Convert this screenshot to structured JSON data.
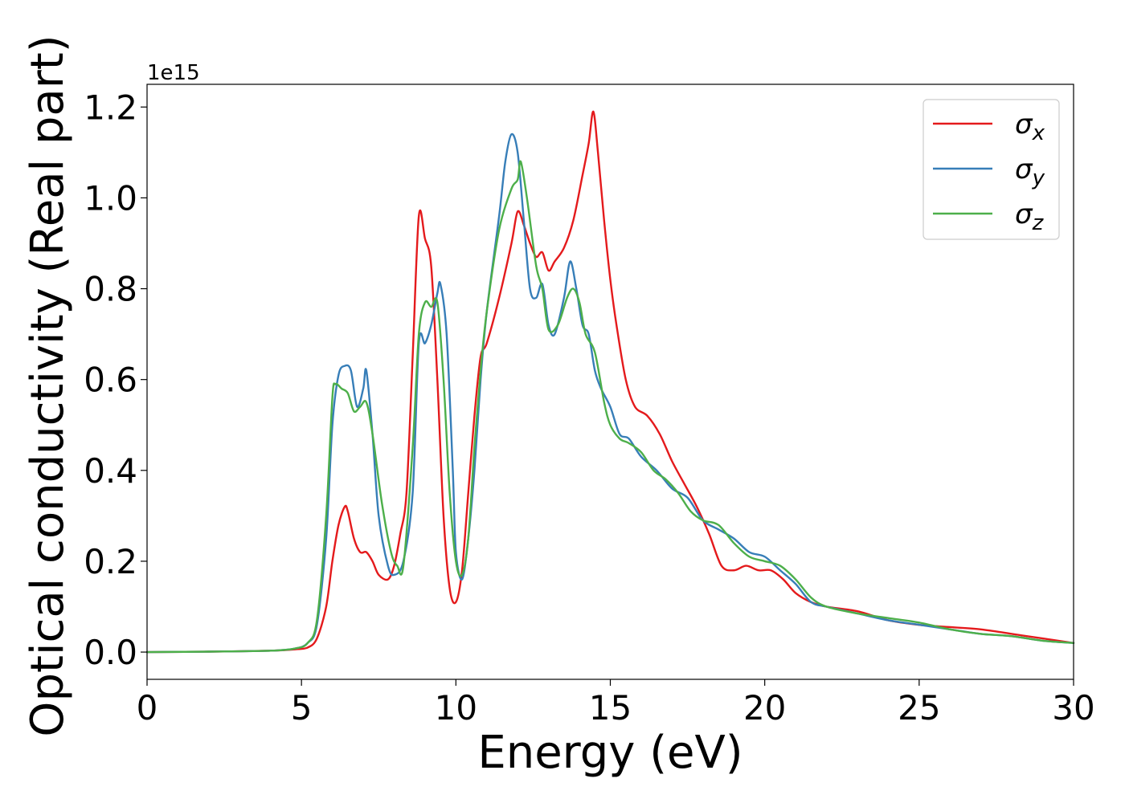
{
  "chart_data": {
    "type": "line",
    "title": "",
    "xlabel": "Energy (eV)",
    "ylabel": "Optical conductivity (Real part)",
    "y_offset_label": "1e15",
    "xlim": [
      0,
      30
    ],
    "ylim": [
      -0.06,
      1.25
    ],
    "xticks": [
      0,
      5,
      10,
      15,
      20,
      25,
      30
    ],
    "xtick_labels": [
      "0",
      "5",
      "10",
      "15",
      "20",
      "25",
      "30"
    ],
    "yticks": [
      0.0,
      0.2,
      0.4,
      0.6,
      0.8,
      1.0,
      1.2
    ],
    "ytick_labels": [
      "0.0",
      "0.2",
      "0.4",
      "0.6",
      "0.8",
      "1.0",
      "1.2"
    ],
    "grid": false,
    "legend_position": "top-right",
    "series": [
      {
        "name": "σx",
        "legend_base": "σ",
        "legend_sub": "x",
        "color": "#e41a1c",
        "x": [
          0,
          2,
          4,
          4.8,
          5.2,
          5.5,
          5.8,
          6.0,
          6.2,
          6.4,
          6.5,
          6.7,
          6.9,
          7.1,
          7.3,
          7.5,
          7.8,
          8.0,
          8.2,
          8.4,
          8.6,
          8.8,
          9.0,
          9.2,
          9.4,
          9.6,
          9.8,
          10.0,
          10.2,
          10.4,
          10.6,
          10.8,
          11.0,
          11.4,
          11.8,
          12.0,
          12.2,
          12.4,
          12.6,
          12.8,
          13.0,
          13.2,
          13.5,
          13.8,
          14.1,
          14.3,
          14.45,
          14.6,
          14.8,
          15.0,
          15.2,
          15.5,
          15.8,
          16.2,
          16.6,
          17.0,
          17.4,
          17.8,
          18.2,
          18.6,
          19.0,
          19.4,
          19.8,
          20.2,
          20.6,
          21.0,
          21.5,
          22,
          23,
          24,
          25,
          26,
          27,
          28,
          29,
          30
        ],
        "y": [
          0.0,
          0.001,
          0.003,
          0.006,
          0.01,
          0.03,
          0.1,
          0.2,
          0.28,
          0.32,
          0.31,
          0.25,
          0.22,
          0.22,
          0.2,
          0.17,
          0.16,
          0.19,
          0.26,
          0.35,
          0.65,
          0.96,
          0.91,
          0.85,
          0.6,
          0.3,
          0.14,
          0.11,
          0.18,
          0.35,
          0.52,
          0.65,
          0.68,
          0.78,
          0.9,
          0.97,
          0.94,
          0.9,
          0.87,
          0.88,
          0.84,
          0.86,
          0.89,
          0.95,
          1.05,
          1.12,
          1.19,
          1.1,
          0.95,
          0.82,
          0.72,
          0.6,
          0.54,
          0.52,
          0.48,
          0.42,
          0.37,
          0.32,
          0.26,
          0.19,
          0.18,
          0.19,
          0.18,
          0.18,
          0.16,
          0.13,
          0.11,
          0.1,
          0.09,
          0.07,
          0.06,
          0.055,
          0.05,
          0.04,
          0.03,
          0.02
        ]
      },
      {
        "name": "σy",
        "legend_base": "σ",
        "legend_sub": "y",
        "color": "#377eb8",
        "x": [
          0,
          2,
          4,
          4.8,
          5.2,
          5.5,
          5.8,
          6.0,
          6.2,
          6.4,
          6.6,
          6.8,
          7.0,
          7.1,
          7.3,
          7.5,
          7.8,
          8.0,
          8.3,
          8.6,
          8.8,
          9.0,
          9.2,
          9.4,
          9.5,
          9.7,
          9.9,
          10.0,
          10.2,
          10.4,
          10.6,
          10.8,
          11.0,
          11.4,
          11.6,
          11.8,
          12.0,
          12.2,
          12.4,
          12.6,
          12.8,
          13.0,
          13.2,
          13.5,
          13.7,
          13.9,
          14.1,
          14.3,
          14.5,
          14.7,
          15.0,
          15.3,
          15.6,
          16.0,
          16.5,
          17.0,
          17.5,
          18.0,
          18.5,
          19.0,
          19.5,
          20.0,
          20.5,
          21.0,
          21.5,
          22,
          23,
          24,
          25,
          26,
          27,
          28,
          29,
          30
        ],
        "y": [
          0.0,
          0.001,
          0.003,
          0.008,
          0.02,
          0.06,
          0.25,
          0.5,
          0.61,
          0.63,
          0.62,
          0.54,
          0.58,
          0.62,
          0.48,
          0.3,
          0.19,
          0.17,
          0.2,
          0.35,
          0.68,
          0.68,
          0.72,
          0.79,
          0.81,
          0.7,
          0.4,
          0.22,
          0.16,
          0.25,
          0.4,
          0.6,
          0.75,
          0.96,
          1.08,
          1.14,
          1.1,
          0.95,
          0.8,
          0.78,
          0.81,
          0.72,
          0.7,
          0.78,
          0.86,
          0.8,
          0.72,
          0.7,
          0.62,
          0.58,
          0.54,
          0.48,
          0.47,
          0.43,
          0.4,
          0.36,
          0.34,
          0.29,
          0.27,
          0.25,
          0.22,
          0.21,
          0.18,
          0.15,
          0.11,
          0.1,
          0.085,
          0.07,
          0.06,
          0.05,
          0.04,
          0.035,
          0.025,
          0.02
        ]
      },
      {
        "name": "σz",
        "legend_base": "σ",
        "legend_sub": "z",
        "color": "#4daf4a",
        "x": [
          0,
          2,
          4,
          4.8,
          5.2,
          5.5,
          5.8,
          6.0,
          6.1,
          6.3,
          6.5,
          6.7,
          6.9,
          7.1,
          7.3,
          7.6,
          7.9,
          8.1,
          8.3,
          8.6,
          8.8,
          9.0,
          9.2,
          9.4,
          9.6,
          9.8,
          10.0,
          10.2,
          10.4,
          10.6,
          10.8,
          11.0,
          11.4,
          11.8,
          12.0,
          12.1,
          12.3,
          12.6,
          12.8,
          13.0,
          13.3,
          13.6,
          13.8,
          14.0,
          14.2,
          14.5,
          14.8,
          15.0,
          15.3,
          15.6,
          16.0,
          16.4,
          16.8,
          17.2,
          17.6,
          18.0,
          18.5,
          19.0,
          19.5,
          20.0,
          20.5,
          21.0,
          21.5,
          22,
          23,
          24,
          25,
          26,
          27,
          28,
          29,
          30
        ],
        "y": [
          0.0,
          0.001,
          0.003,
          0.008,
          0.02,
          0.07,
          0.3,
          0.56,
          0.59,
          0.58,
          0.57,
          0.53,
          0.54,
          0.55,
          0.48,
          0.33,
          0.22,
          0.19,
          0.19,
          0.45,
          0.7,
          0.77,
          0.76,
          0.77,
          0.6,
          0.35,
          0.2,
          0.17,
          0.25,
          0.45,
          0.62,
          0.75,
          0.93,
          1.02,
          1.04,
          1.08,
          1.0,
          0.85,
          0.8,
          0.71,
          0.72,
          0.78,
          0.8,
          0.77,
          0.7,
          0.66,
          0.55,
          0.5,
          0.47,
          0.46,
          0.44,
          0.4,
          0.38,
          0.35,
          0.31,
          0.29,
          0.28,
          0.24,
          0.21,
          0.2,
          0.19,
          0.16,
          0.12,
          0.1,
          0.085,
          0.075,
          0.065,
          0.05,
          0.04,
          0.035,
          0.025,
          0.02
        ]
      }
    ]
  }
}
